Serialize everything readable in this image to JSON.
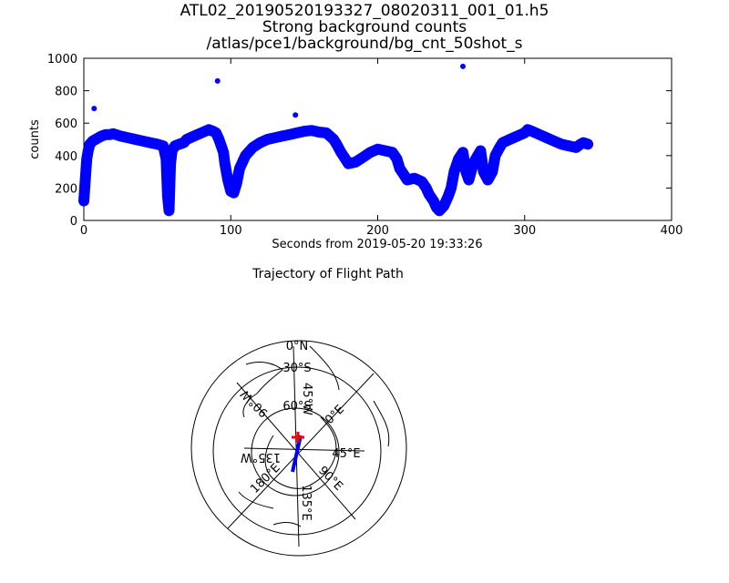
{
  "chart_data": [
    {
      "type": "scatter",
      "title_lines": [
        "ATL02_20190520193327_08020311_001_01.h5",
        "Strong background counts",
        "/atlas/pce1/background/bg_cnt_50shot_s"
      ],
      "xlabel": "Seconds from 2019-05-20 19:33:26",
      "ylabel": "counts",
      "xlim": [
        0,
        400
      ],
      "ylim": [
        0,
        1000
      ],
      "xticks": [
        0,
        100,
        200,
        300,
        400
      ],
      "yticks": [
        0,
        200,
        400,
        600,
        800,
        1000
      ],
      "grid": false,
      "marker_color": "#0000ff",
      "series": [
        {
          "x": [
            0,
            1,
            2,
            3,
            4,
            5,
            6,
            8,
            10,
            12,
            15,
            18,
            20,
            25,
            30,
            35,
            40,
            45,
            50,
            54,
            56,
            57,
            58,
            59,
            60,
            62,
            65,
            68,
            70,
            75,
            80,
            85,
            88,
            90,
            92,
            95,
            96,
            98,
            100,
            102,
            104,
            106,
            110,
            115,
            120,
            125,
            130,
            135,
            140,
            145,
            150,
            155,
            160,
            165,
            170,
            172,
            175,
            178,
            180,
            185,
            190,
            195,
            200,
            205,
            210,
            213,
            215,
            218,
            220,
            225,
            230,
            233,
            235,
            238,
            240,
            242,
            245,
            248,
            250,
            252,
            255,
            258,
            260,
            262,
            265,
            268,
            270,
            272,
            275,
            278,
            280,
            283,
            285,
            290,
            295,
            300,
            302,
            305,
            310,
            315,
            320,
            325,
            330,
            335,
            338,
            340,
            343
          ],
          "y": [
            120,
            250,
            380,
            430,
            470,
            480,
            490,
            500,
            510,
            520,
            530,
            530,
            535,
            520,
            510,
            500,
            490,
            480,
            470,
            460,
            380,
            150,
            60,
            350,
            430,
            460,
            470,
            480,
            500,
            520,
            540,
            560,
            550,
            540,
            500,
            420,
            350,
            250,
            180,
            170,
            230,
            320,
            400,
            450,
            480,
            500,
            510,
            520,
            530,
            540,
            550,
            555,
            545,
            540,
            500,
            470,
            420,
            380,
            350,
            360,
            390,
            420,
            440,
            430,
            420,
            380,
            320,
            280,
            250,
            260,
            240,
            200,
            160,
            120,
            80,
            60,
            90,
            150,
            200,
            300,
            380,
            420,
            300,
            250,
            350,
            400,
            430,
            300,
            250,
            300,
            400,
            450,
            480,
            500,
            520,
            540,
            560,
            550,
            530,
            510,
            490,
            470,
            460,
            450,
            470,
            480,
            470
          ]
        }
      ],
      "outliers": {
        "x": [
          7,
          91,
          144,
          258
        ],
        "y": [
          690,
          860,
          650,
          950
        ]
      }
    },
    {
      "type": "other",
      "title": "Trajectory of Flight Path",
      "labels": [
        "0°N",
        "30°S",
        "60°S",
        "45°W",
        "90°W",
        "135°W",
        "180°E",
        "0°E",
        "45°E",
        "90°E",
        "135°E"
      ],
      "track_color": "#0000ff",
      "marker_color": "#ff0000"
    }
  ]
}
